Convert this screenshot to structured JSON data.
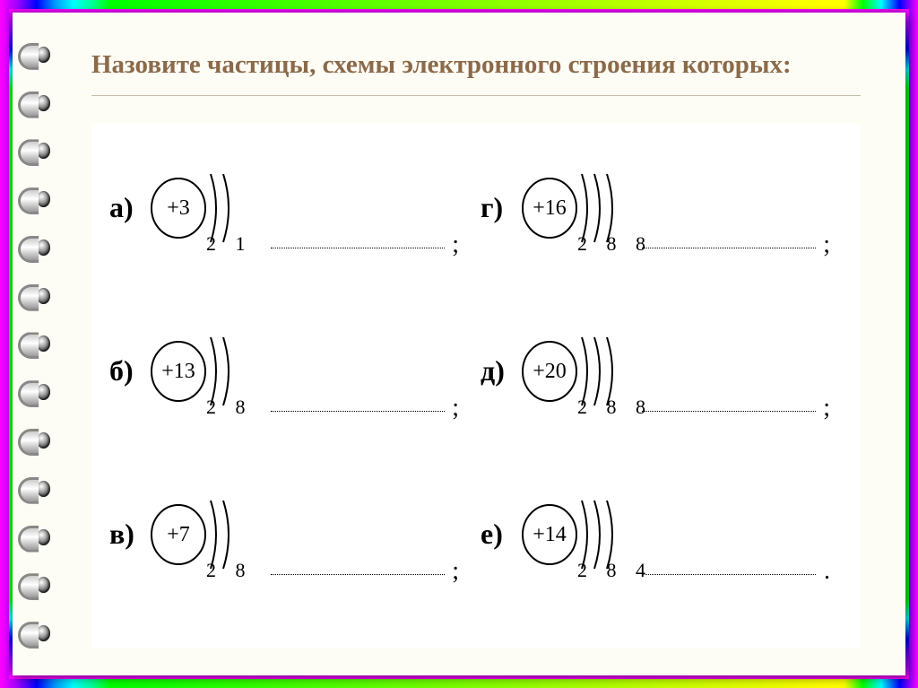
{
  "title": "Назовите частицы, схемы электронного строения которых:",
  "colors": {
    "title_color": "#8b6a4a",
    "paper_bg": "#fdfcf5",
    "box_bg": "#ffffff",
    "text_color": "#000000"
  },
  "items": [
    {
      "label": "а)",
      "nucleus": "+3",
      "shells": 2,
      "electrons": "2 1",
      "terminator": ";"
    },
    {
      "label": "г)",
      "nucleus": "+16",
      "shells": 3,
      "electrons": "2 8 8",
      "terminator": ";"
    },
    {
      "label": "б)",
      "nucleus": "+13",
      "shells": 2,
      "electrons": "2 8",
      "terminator": ";"
    },
    {
      "label": "д)",
      "nucleus": "+20",
      "shells": 3,
      "electrons": "2 8 8",
      "terminator": ";"
    },
    {
      "label": "в)",
      "nucleus": "+7",
      "shells": 2,
      "electrons": "2 8",
      "terminator": ";"
    },
    {
      "label": "е)",
      "nucleus": "+14",
      "shells": 3,
      "electrons": "2 8 4",
      "terminator": "."
    }
  ],
  "diagram_style": {
    "nucleus_rx": 30,
    "nucleus_ry": 33,
    "shell_spacing": 14,
    "stroke_color": "#000000",
    "stroke_width": 2,
    "nucleus_fontsize": 24,
    "electrons_fontsize": 22,
    "label_fontsize": 32
  }
}
